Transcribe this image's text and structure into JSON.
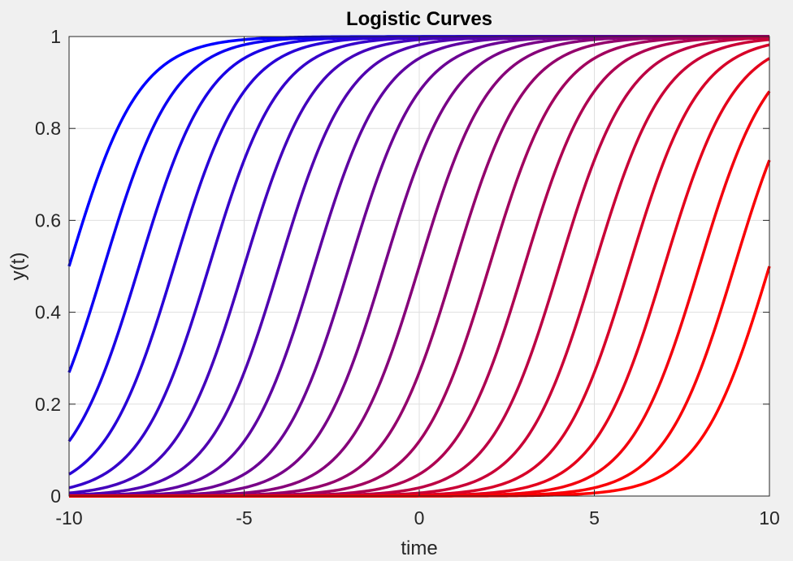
{
  "chart_data": {
    "type": "line",
    "title": "Logistic Curves",
    "xlabel": "time",
    "ylabel": "y(t)",
    "xlim": [
      -10,
      10
    ],
    "ylim": [
      0,
      1
    ],
    "xticks": [
      -10,
      -5,
      0,
      5,
      10
    ],
    "yticks": [
      0,
      0.2,
      0.4,
      0.6,
      0.8,
      1
    ],
    "xtick_labels": [
      "-10",
      "-5",
      "0",
      "5",
      "10"
    ],
    "ytick_labels": [
      "0",
      "0.2",
      "0.4",
      "0.6",
      "0.8",
      "1"
    ],
    "grid": true,
    "legend": "none",
    "function": "y(t) = 1 / (1 + exp(-(t - t0)))",
    "series": [
      {
        "t0": -10,
        "color": "#0000ff"
      },
      {
        "t0": -9,
        "color": "#0d00f2"
      },
      {
        "t0": -8,
        "color": "#1a00e5"
      },
      {
        "t0": -7,
        "color": "#2800d7"
      },
      {
        "t0": -6,
        "color": "#3500ca"
      },
      {
        "t0": -5,
        "color": "#4300bc"
      },
      {
        "t0": -4,
        "color": "#5000af"
      },
      {
        "t0": -3,
        "color": "#5e00a1"
      },
      {
        "t0": -2,
        "color": "#6b0094"
      },
      {
        "t0": -1,
        "color": "#780087"
      },
      {
        "t0": 0,
        "color": "#860079"
      },
      {
        "t0": 1,
        "color": "#93006c"
      },
      {
        "t0": 2,
        "color": "#a1005e"
      },
      {
        "t0": 3,
        "color": "#ae0051"
      },
      {
        "t0": 4,
        "color": "#bc0043"
      },
      {
        "t0": 5,
        "color": "#c90036"
      },
      {
        "t0": 6,
        "color": "#d70028"
      },
      {
        "t0": 7,
        "color": "#e4001b"
      },
      {
        "t0": 8,
        "color": "#f2000d"
      },
      {
        "t0": 9,
        "color": "#f80007"
      },
      {
        "t0": 10,
        "color": "#ff0000"
      }
    ]
  }
}
